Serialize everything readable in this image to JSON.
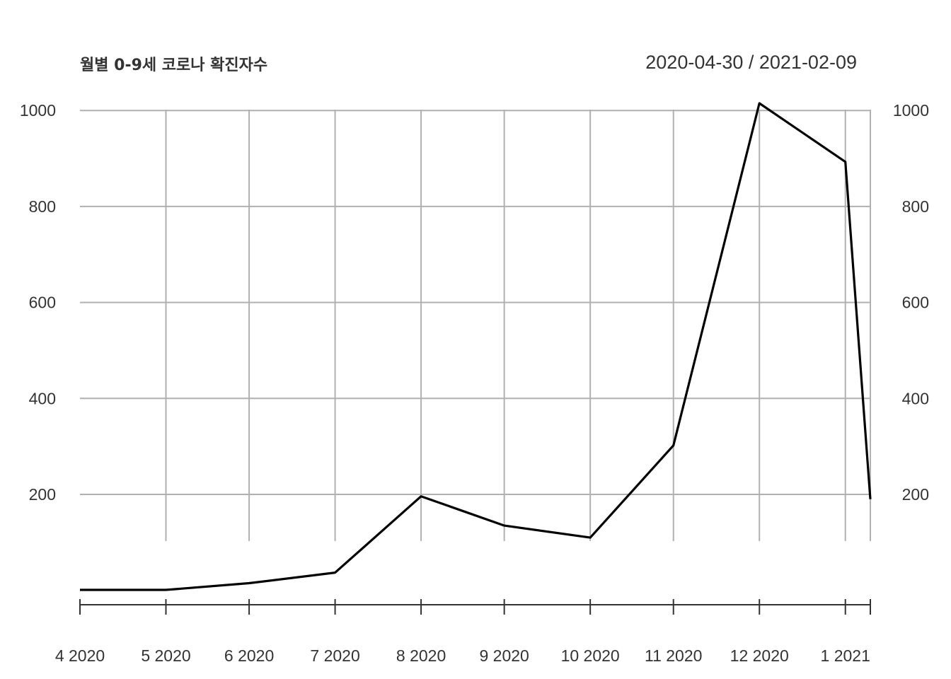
{
  "chart_data": {
    "type": "line",
    "title": "월별 0-9세 코로나 확진자수",
    "date_range": "2020-04-30 / 2021-02-09",
    "x_labels": [
      "4 2020",
      "5 2020",
      "6 2020",
      "7 2020",
      "8 2020",
      "9 2020",
      "10 2020",
      "11 2020",
      "12 2020",
      "1 2021"
    ],
    "x": [
      "2020-04-30",
      "2020-05-31",
      "2020-06-30",
      "2020-07-31",
      "2020-08-31",
      "2020-09-30",
      "2020-10-31",
      "2020-11-30",
      "2020-12-31",
      "2021-01-31",
      "2021-02-09"
    ],
    "series": [
      {
        "values": [
          1,
          1,
          15,
          37,
          196,
          135,
          110,
          302,
          1015,
          893,
          190
        ]
      }
    ],
    "y_ticks": [
      200,
      400,
      600,
      800,
      1000
    ],
    "ylim": [
      -50,
      1015
    ],
    "grid": true,
    "y_axis_right": true
  }
}
